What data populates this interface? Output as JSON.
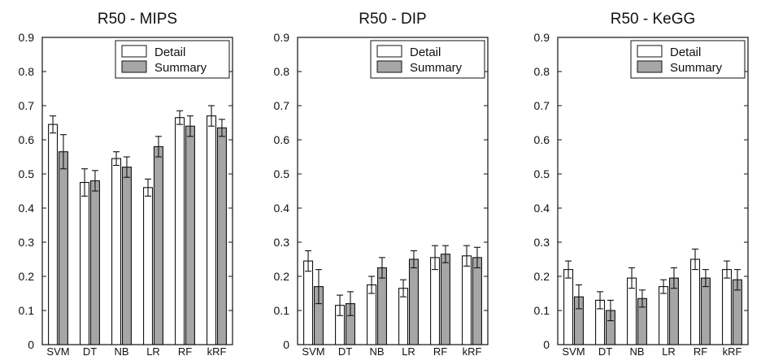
{
  "chart_data": [
    {
      "type": "bar",
      "title": "R50 - MIPS",
      "categories": [
        "SVM",
        "DT",
        "NB",
        "LR",
        "RF",
        "kRF"
      ],
      "ylim": [
        0,
        0.9
      ],
      "yticks": [
        "0",
        "0.1",
        "0.2",
        "0.3",
        "0.4",
        "0.5",
        "0.6",
        "0.7",
        "0.8",
        "0.9"
      ],
      "legend_position": "top-right",
      "grid": false,
      "series": [
        {
          "name": "Detail",
          "color": "#ffffff",
          "values": [
            0.645,
            0.475,
            0.545,
            0.46,
            0.665,
            0.67
          ],
          "errors": [
            0.025,
            0.04,
            0.02,
            0.025,
            0.02,
            0.03
          ]
        },
        {
          "name": "Summary",
          "color": "#a6a6a6",
          "values": [
            0.565,
            0.48,
            0.52,
            0.58,
            0.64,
            0.635
          ],
          "errors": [
            0.05,
            0.03,
            0.03,
            0.03,
            0.03,
            0.025
          ]
        }
      ]
    },
    {
      "type": "bar",
      "title": "R50 - DIP",
      "categories": [
        "SVM",
        "DT",
        "NB",
        "LR",
        "RF",
        "kRF"
      ],
      "ylim": [
        0,
        0.9
      ],
      "yticks": [
        "0",
        "0.1",
        "0.2",
        "0.3",
        "0.4",
        "0.5",
        "0.6",
        "0.7",
        "0.8",
        "0.9"
      ],
      "legend_position": "top-right",
      "grid": false,
      "series": [
        {
          "name": "Detail",
          "color": "#ffffff",
          "values": [
            0.245,
            0.115,
            0.175,
            0.165,
            0.255,
            0.26
          ],
          "errors": [
            0.03,
            0.03,
            0.025,
            0.025,
            0.035,
            0.03
          ]
        },
        {
          "name": "Summary",
          "color": "#a6a6a6",
          "values": [
            0.17,
            0.12,
            0.225,
            0.25,
            0.265,
            0.255
          ],
          "errors": [
            0.05,
            0.035,
            0.03,
            0.025,
            0.025,
            0.03
          ]
        }
      ]
    },
    {
      "type": "bar",
      "title": "R50 - KeGG",
      "categories": [
        "SVM",
        "DT",
        "NB",
        "LR",
        "RF",
        "kRF"
      ],
      "ylim": [
        0,
        0.9
      ],
      "yticks": [
        "0",
        "0.1",
        "0.2",
        "0.3",
        "0.4",
        "0.5",
        "0.6",
        "0.7",
        "0.8",
        "0.9"
      ],
      "legend_position": "top-right",
      "grid": false,
      "series": [
        {
          "name": "Detail",
          "color": "#ffffff",
          "values": [
            0.22,
            0.13,
            0.195,
            0.17,
            0.25,
            0.22
          ],
          "errors": [
            0.025,
            0.025,
            0.03,
            0.02,
            0.03,
            0.025
          ]
        },
        {
          "name": "Summary",
          "color": "#a6a6a6",
          "values": [
            0.14,
            0.1,
            0.135,
            0.195,
            0.195,
            0.19
          ],
          "errors": [
            0.035,
            0.03,
            0.025,
            0.03,
            0.025,
            0.03
          ]
        }
      ]
    }
  ]
}
